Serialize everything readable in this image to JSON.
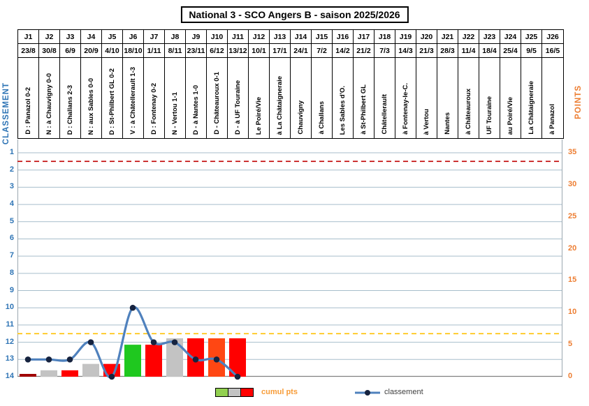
{
  "title": "National 3 - SCO Angers B - saison 2025/2026",
  "left_axis": {
    "label": "CLASSEMENT",
    "color": "#2E74B5",
    "ticks": [
      1,
      2,
      3,
      4,
      5,
      6,
      7,
      8,
      9,
      10,
      11,
      12,
      13,
      14
    ]
  },
  "right_axis": {
    "label": "POINTS",
    "color": "#ED7D31",
    "ticks": [
      35,
      30,
      25,
      20,
      15,
      10,
      5,
      0
    ]
  },
  "legend": {
    "cumul_label": "cumul pts",
    "cumul_label_color": "#F79C38",
    "classement_label": "classement",
    "swatch_colors": [
      "#92D050",
      "#C3C3C3",
      "#FF0000"
    ]
  },
  "reference_lines": [
    {
      "name": "top-line",
      "classement": 1.5,
      "color": "#C00000"
    },
    {
      "name": "relegation-line",
      "classement": 11.5,
      "color": "#FFC000"
    }
  ],
  "chart_data": {
    "type": "bar+line combo",
    "title": "National 3 - SCO Angers B - saison 2025/2026",
    "left_axis_range": [
      1,
      14
    ],
    "right_axis_range": [
      0,
      35
    ],
    "grid": "horizontal",
    "matchdays": [
      {
        "j": "J1",
        "date": "23/8",
        "label": "D : Panazol 0-2"
      },
      {
        "j": "J2",
        "date": "30/8",
        "label": "N : à Chauvigny 0-0"
      },
      {
        "j": "J3",
        "date": "6/9",
        "label": "D : Challans 2-3"
      },
      {
        "j": "J4",
        "date": "20/9",
        "label": "N : aux Sables 0-0"
      },
      {
        "j": "J5",
        "date": "4/10",
        "label": "D : St-Philbert GL 0-2"
      },
      {
        "j": "J6",
        "date": "18/10",
        "label": "V : à Châtellerault 1-3"
      },
      {
        "j": "J7",
        "date": "1/11",
        "label": "D : Fontenay 0-2"
      },
      {
        "j": "J8",
        "date": "8/11",
        "label": "N - Vertou 1-1"
      },
      {
        "j": "J9",
        "date": "23/11",
        "label": "D - à Nantes 1-0"
      },
      {
        "j": "J10",
        "date": "6/12",
        "label": "D - Châteauroux 0-1"
      },
      {
        "j": "J11",
        "date": "13/12",
        "label": "D - à UF Touraine"
      },
      {
        "j": "J12",
        "date": "10/1",
        "label": "Le Poiré/Vie"
      },
      {
        "j": "J13",
        "date": "17/1",
        "label": "à La Châtaigneraie"
      },
      {
        "j": "J14",
        "date": "24/1",
        "label": "Chauvigny"
      },
      {
        "j": "J15",
        "date": "7/2",
        "label": "à Challans"
      },
      {
        "j": "J16",
        "date": "14/2",
        "label": "Les Sables d'O."
      },
      {
        "j": "J17",
        "date": "21/2",
        "label": "à St-Philbert GL"
      },
      {
        "j": "J18",
        "date": "7/3",
        "label": "Châtellerault"
      },
      {
        "j": "J19",
        "date": "14/3",
        "label": "à Fontenay-le-C."
      },
      {
        "j": "J20",
        "date": "21/3",
        "label": "à Vertou"
      },
      {
        "j": "J21",
        "date": "28/3",
        "label": "Nantes"
      },
      {
        "j": "J22",
        "date": "11/4",
        "label": "à Châteauroux"
      },
      {
        "j": "J23",
        "date": "18/4",
        "label": "UF Touraine"
      },
      {
        "j": "J24",
        "date": "25/4",
        "label": "au Poiré/Vie"
      },
      {
        "j": "J25",
        "date": "9/5",
        "label": "La Châtaigneraie"
      },
      {
        "j": "J26",
        "date": "16/5",
        "label": "à Panazol"
      }
    ],
    "series": [
      {
        "name": "cumul pts",
        "type": "bar",
        "axis": "right",
        "values": [
          0,
          1,
          1,
          2,
          2,
          5,
          5,
          6,
          6,
          6,
          6
        ],
        "bar_colors": [
          "#A00000",
          "#C3C3C3",
          "#FF0000",
          "#C3C3C3",
          "#FF0000",
          "#1FC81F",
          "#FF0000",
          "#C3C3C3",
          "#FF0000",
          "#FF4713",
          "#FF0000"
        ]
      },
      {
        "name": "classement",
        "type": "line",
        "axis": "left",
        "values": [
          13,
          13,
          13,
          12,
          14,
          10,
          12,
          12,
          13,
          13,
          14
        ],
        "line_color": "#4F81BD",
        "marker_color": "#16233F"
      }
    ],
    "style_colors": {
      "gridline": "#A7BECB",
      "plot_border": "#9AA7B0",
      "baseline": "#808080"
    }
  }
}
